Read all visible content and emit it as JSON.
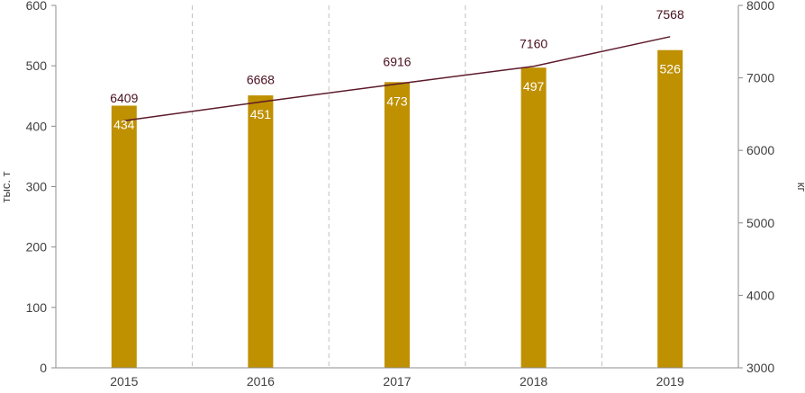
{
  "chart_data": {
    "type": "bar",
    "categories": [
      "2015",
      "2016",
      "2017",
      "2018",
      "2019"
    ],
    "series": [
      {
        "type": "bar",
        "axis": "left",
        "values": [
          434,
          451,
          473,
          497,
          526
        ],
        "color": "#bf9000"
      },
      {
        "type": "line",
        "axis": "right",
        "values": [
          6409,
          6668,
          6916,
          7160,
          7568
        ],
        "color": "#5c1a2b"
      }
    ],
    "ylabel": "тыс. т",
    "y2label": "кг",
    "ylim": [
      0,
      600
    ],
    "y2lim": [
      3000,
      8000
    ],
    "yticks": [
      "0",
      "100",
      "200",
      "300",
      "400",
      "500",
      "600"
    ],
    "y2ticks": [
      "3000",
      "4000",
      "5000",
      "6000",
      "7000",
      "8000"
    ],
    "grid": "vertical-dashed"
  }
}
